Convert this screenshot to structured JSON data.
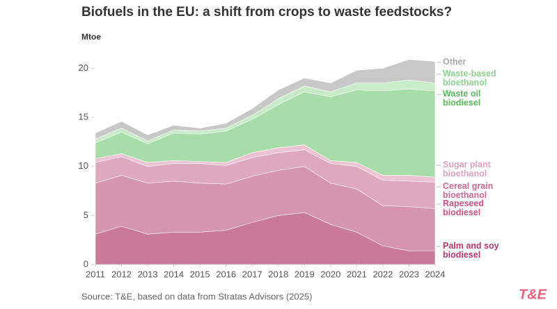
{
  "chart_data": {
    "type": "stacked-area",
    "title": "Biofuels in the EU: a shift from crops to waste feedstocks?",
    "y_label": "Mtoe",
    "source": "Source: T&E, based on data from Stratas Advisors (2025)",
    "logo": "T&E",
    "x": [
      2011,
      2012,
      2013,
      2014,
      2015,
      2016,
      2017,
      2018,
      2019,
      2020,
      2021,
      2022,
      2023,
      2024
    ],
    "xlim": [
      2011,
      2024
    ],
    "xticks": [
      2011,
      2012,
      2013,
      2014,
      2015,
      2016,
      2017,
      2018,
      2019,
      2020,
      2021,
      2022,
      2023,
      2024
    ],
    "ylim": [
      0,
      21.3
    ],
    "yticks": [
      0,
      5,
      10,
      15,
      20
    ],
    "series": [
      {
        "name": "Palm and soy biodiesel",
        "color": "#c97a98",
        "label_color": "#b5366a",
        "values": [
          3.1,
          3.9,
          3.1,
          3.3,
          3.3,
          3.5,
          4.3,
          5.0,
          5.3,
          4.1,
          3.3,
          1.9,
          1.4,
          1.4
        ]
      },
      {
        "name": "Rapeseed biodiesel",
        "color": "#d595af",
        "label_color": "#c4538a",
        "values": [
          5.2,
          5.2,
          5.2,
          5.2,
          5.0,
          4.7,
          4.7,
          4.6,
          4.7,
          4.2,
          4.4,
          4.1,
          4.5,
          4.3
        ]
      },
      {
        "name": "Cereal grain bioethanol",
        "color": "#dea9bd",
        "label_color": "#c86a96",
        "values": [
          2.1,
          1.9,
          1.7,
          1.8,
          2.0,
          1.9,
          1.9,
          1.8,
          1.7,
          2.0,
          2.3,
          2.6,
          2.6,
          2.7
        ]
      },
      {
        "name": "Sugar plant bioethanol",
        "color": "#ebc3d2",
        "label_color": "#dba3bd",
        "values": [
          0.4,
          0.3,
          0.4,
          0.3,
          0.2,
          0.3,
          0.5,
          0.5,
          0.5,
          0.3,
          0.4,
          0.5,
          0.6,
          0.5
        ]
      },
      {
        "name": "Waste oil biodiesel",
        "color": "#a8dca8",
        "label_color": "#5cb85c",
        "values": [
          1.6,
          2.2,
          1.9,
          2.8,
          2.8,
          3.2,
          3.4,
          4.4,
          5.4,
          6.5,
          7.4,
          8.6,
          8.8,
          8.8
        ]
      },
      {
        "name": "Waste-based bioethanol",
        "color": "#c7ebc7",
        "label_color": "#8fd18f",
        "values": [
          0.4,
          0.4,
          0.3,
          0.3,
          0.3,
          0.3,
          0.4,
          0.6,
          0.6,
          0.5,
          0.7,
          0.8,
          0.9,
          0.8
        ]
      },
      {
        "name": "Other",
        "color": "#c8c8c8",
        "label_color": "#a8a8a8",
        "values": [
          0.6,
          0.7,
          0.6,
          0.5,
          0.3,
          0.5,
          0.7,
          0.9,
          0.8,
          0.9,
          1.3,
          1.5,
          2.1,
          2.2
        ]
      }
    ]
  }
}
